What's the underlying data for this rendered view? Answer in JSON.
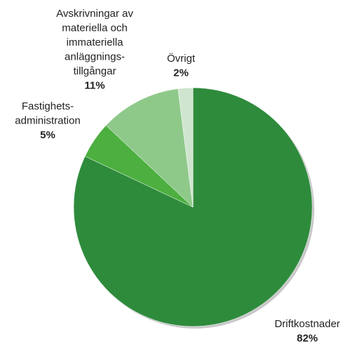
{
  "chart_data": {
    "type": "pie",
    "categories": [
      [
        "Driftkostnader"
      ],
      [
        "Fastighets-",
        "administration"
      ],
      [
        "Avskrivningar av",
        "materiella och",
        "immateriella",
        "anläggnings-",
        "tillgångar"
      ],
      [
        "Övrigt"
      ]
    ],
    "values": [
      82,
      5,
      11,
      2
    ],
    "value_labels": [
      "82%",
      "5%",
      "11%",
      "2%"
    ],
    "colors": [
      "#2e8b3c",
      "#4caf3f",
      "#8ec98a",
      "#cfe5cf"
    ]
  }
}
